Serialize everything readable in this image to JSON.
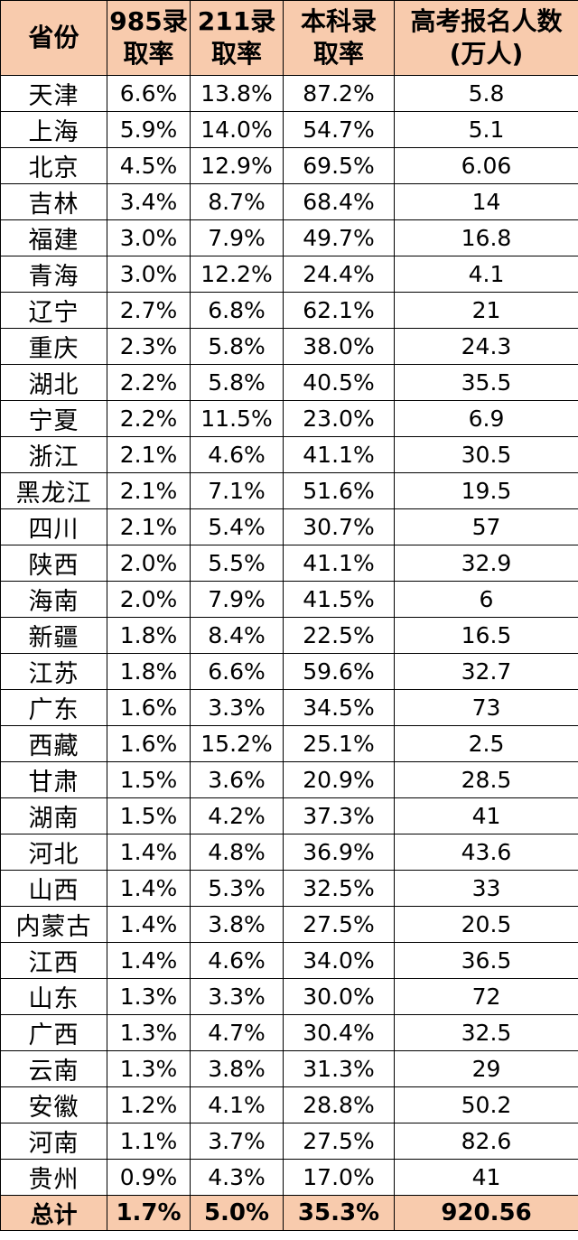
{
  "headers": [
    "省份",
    "985录\n取率",
    "211录\n取率",
    "本科录\n取率",
    "高考报名人数\n(万人)"
  ],
  "rows": [
    [
      "天津",
      "6.6%",
      "13.8%",
      "87.2%",
      "5.8"
    ],
    [
      "上海",
      "5.9%",
      "14.0%",
      "54.7%",
      "5.1"
    ],
    [
      "北京",
      "4.5%",
      "12.9%",
      "69.5%",
      "6.06"
    ],
    [
      "吉林",
      "3.4%",
      "8.7%",
      "68.4%",
      "14"
    ],
    [
      "福建",
      "3.0%",
      "7.9%",
      "49.7%",
      "16.8"
    ],
    [
      "青海",
      "3.0%",
      "12.2%",
      "24.4%",
      "4.1"
    ],
    [
      "辽宁",
      "2.7%",
      "6.8%",
      "62.1%",
      "21"
    ],
    [
      "重庆",
      "2.3%",
      "5.8%",
      "38.0%",
      "24.3"
    ],
    [
      "湖北",
      "2.2%",
      "5.8%",
      "40.5%",
      "35.5"
    ],
    [
      "宁夏",
      "2.2%",
      "11.5%",
      "23.0%",
      "6.9"
    ],
    [
      "浙江",
      "2.1%",
      "4.6%",
      "41.1%",
      "30.5"
    ],
    [
      "黑龙江",
      "2.1%",
      "7.1%",
      "51.6%",
      "19.5"
    ],
    [
      "四川",
      "2.1%",
      "5.4%",
      "30.7%",
      "57"
    ],
    [
      "陕西",
      "2.0%",
      "5.5%",
      "41.1%",
      "32.9"
    ],
    [
      "海南",
      "2.0%",
      "7.9%",
      "41.5%",
      "6"
    ],
    [
      "新疆",
      "1.8%",
      "8.4%",
      "22.5%",
      "16.5"
    ],
    [
      "江苏",
      "1.8%",
      "6.6%",
      "59.6%",
      "32.7"
    ],
    [
      "广东",
      "1.6%",
      "3.3%",
      "34.5%",
      "73"
    ],
    [
      "西藏",
      "1.6%",
      "15.2%",
      "25.1%",
      "2.5"
    ],
    [
      "甘肃",
      "1.5%",
      "3.6%",
      "20.9%",
      "28.5"
    ],
    [
      "湖南",
      "1.5%",
      "4.2%",
      "37.3%",
      "41"
    ],
    [
      "河北",
      "1.4%",
      "4.8%",
      "36.9%",
      "43.6"
    ],
    [
      "山西",
      "1.4%",
      "5.3%",
      "32.5%",
      "33"
    ],
    [
      "内蒙古",
      "1.4%",
      "3.8%",
      "27.5%",
      "20.5"
    ],
    [
      "江西",
      "1.4%",
      "4.6%",
      "34.0%",
      "36.5"
    ],
    [
      "山东",
      "1.3%",
      "3.3%",
      "30.0%",
      "72"
    ],
    [
      "广西",
      "1.3%",
      "4.7%",
      "30.4%",
      "32.5"
    ],
    [
      "云南",
      "1.3%",
      "3.8%",
      "31.3%",
      "29"
    ],
    [
      "安徽",
      "1.2%",
      "4.1%",
      "28.8%",
      "50.2"
    ],
    [
      "河南",
      "1.1%",
      "3.7%",
      "27.5%",
      "82.6"
    ],
    [
      "贵州",
      "0.9%",
      "4.3%",
      "17.0%",
      "41"
    ]
  ],
  "total": [
    "总计",
    "1.7%",
    "5.0%",
    "35.3%",
    "920.56"
  ],
  "colors": {
    "header_bg": "#f8cbad",
    "total_bg": "#f8cbad",
    "border": "#000000"
  }
}
